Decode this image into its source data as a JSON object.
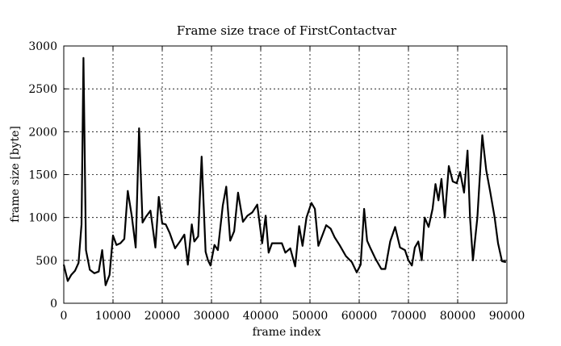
{
  "chart_data": {
    "type": "line",
    "title": "Frame size trace of FirstContactvar",
    "xlabel": "frame index",
    "ylabel": "frame size [byte]",
    "xlim": [
      0,
      90000
    ],
    "ylim": [
      0,
      3000
    ],
    "xticks": [
      0,
      10000,
      20000,
      30000,
      40000,
      50000,
      60000,
      70000,
      80000,
      90000
    ],
    "yticks": [
      0,
      500,
      1000,
      1500,
      2000,
      2500,
      3000
    ],
    "grid": true,
    "series": [
      {
        "x": [
          0,
          800,
          1500,
          2300,
          3000,
          3600,
          4000,
          4500,
          5300,
          6200,
          7100,
          7800,
          8500,
          9300,
          10000,
          10700,
          11500,
          12300,
          13000,
          13800,
          14600,
          15300,
          16000,
          16700,
          17600,
          18600,
          19300,
          20000,
          20700,
          21500,
          22600,
          23600,
          24500,
          25200,
          26000,
          26500,
          27300,
          28000,
          28800,
          29300,
          29800,
          30600,
          31300,
          32300,
          33000,
          33800,
          34600,
          35400,
          36400,
          37300,
          38300,
          39300,
          40300,
          41000,
          41600,
          42300,
          43100,
          44300,
          45000,
          46000,
          47000,
          47800,
          48500,
          49300,
          50300,
          51000,
          51700,
          52500,
          53300,
          54200,
          55000,
          56000,
          57300,
          58500,
          59500,
          60300,
          61000,
          61600,
          62300,
          63300,
          64500,
          65300,
          66300,
          67300,
          68300,
          69300,
          70000,
          70700,
          71300,
          72000,
          72700,
          73300,
          74100,
          74900,
          75500,
          76100,
          76700,
          77400,
          78200,
          79000,
          79800,
          80500,
          81300,
          82000,
          82500,
          83100,
          84000,
          85000,
          85800,
          86600,
          87500,
          88200,
          89000,
          89800
        ],
        "values": [
          450,
          260,
          330,
          380,
          470,
          920,
          2860,
          620,
          390,
          350,
          370,
          620,
          210,
          330,
          790,
          680,
          700,
          750,
          1310,
          1020,
          650,
          2040,
          940,
          1010,
          1080,
          650,
          1240,
          930,
          920,
          820,
          640,
          720,
          800,
          450,
          920,
          720,
          780,
          1710,
          600,
          500,
          440,
          680,
          620,
          1140,
          1360,
          730,
          840,
          1290,
          950,
          1020,
          1060,
          1150,
          700,
          1020,
          590,
          700,
          700,
          700,
          590,
          640,
          430,
          900,
          670,
          1000,
          1170,
          1100,
          670,
          790,
          910,
          870,
          770,
          680,
          550,
          480,
          360,
          450,
          1100,
          730,
          640,
          520,
          400,
          400,
          720,
          890,
          650,
          620,
          500,
          440,
          650,
          720,
          500,
          1000,
          890,
          1100,
          1390,
          1200,
          1450,
          1000,
          1600,
          1420,
          1400,
          1530,
          1290,
          1780,
          1000,
          500,
          1000,
          1960,
          1550,
          1300,
          1000,
          700,
          490,
          480
        ]
      }
    ]
  }
}
